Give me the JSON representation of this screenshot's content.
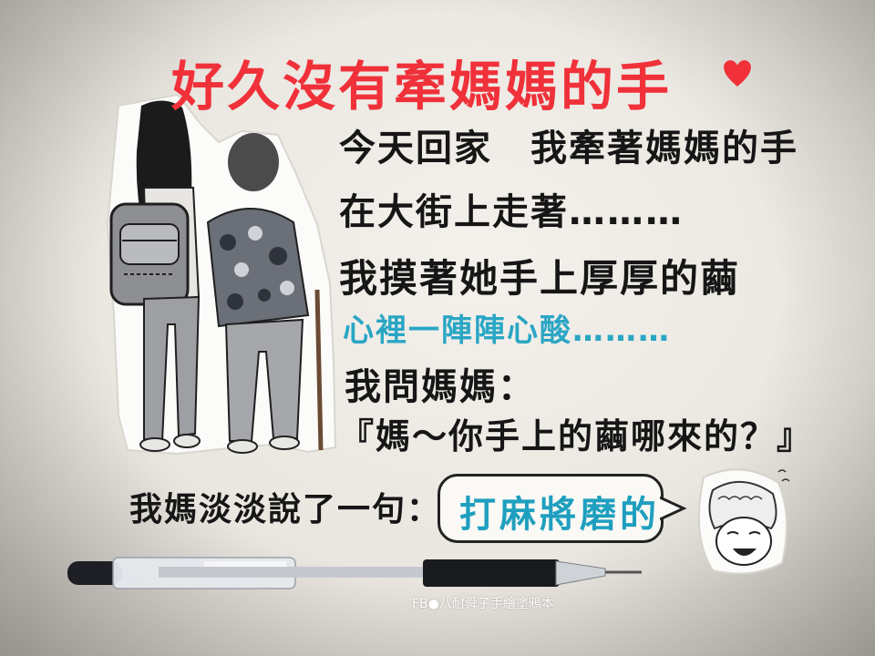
{
  "title": "好久沒有牽媽媽的手",
  "lines": {
    "line1": "今天回家　我牽著媽媽的手",
    "line2": "在大街上走著………",
    "line3": "我摸著她手上厚厚的繭",
    "line4": "心裡一陣陣心酸………",
    "line5": "我問媽媽：",
    "line6": "『媽～你手上的繭哪來的？』",
    "line7": "我媽淡淡說了一句："
  },
  "bubble_text": "打麻將磨的",
  "watermark": "FB●八耐舜子手繪塗鴉本",
  "colors": {
    "title": "#f0313a",
    "accent_blue": "#2aa6c4",
    "text": "#161616",
    "paper": "#f4f1ec"
  }
}
